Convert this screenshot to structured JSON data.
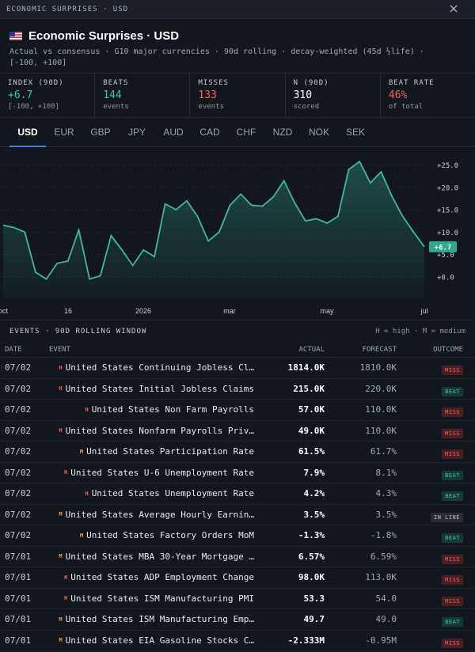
{
  "window": {
    "title": "ECONOMIC SURPRISES · USD"
  },
  "header": {
    "title": "Economic Surprises · USD",
    "subtitle": "Actual vs consensus · G10 major currencies · 90d rolling · decay-weighted (45d ½life) · [-100, +100]"
  },
  "stats": [
    {
      "label": "INDEX (90D)",
      "value": "+6.7",
      "sub": "[-100, +100]",
      "tone": "green"
    },
    {
      "label": "BEATS",
      "value": "144",
      "sub": "events",
      "tone": "green"
    },
    {
      "label": "MISSES",
      "value": "133",
      "sub": "events",
      "tone": "red"
    },
    {
      "label": "N (90D)",
      "value": "310",
      "sub": "scored",
      "tone": "white"
    },
    {
      "label": "BEAT RATE",
      "value": "46%",
      "sub": "of total",
      "tone": "red"
    }
  ],
  "tabs": [
    "USD",
    "EUR",
    "GBP",
    "JPY",
    "AUD",
    "CAD",
    "CHF",
    "NZD",
    "NOK",
    "SEK"
  ],
  "active_tab": "USD",
  "chart_data": {
    "type": "area",
    "y_ticks": [
      "+25.0",
      "+20.0",
      "+15.0",
      "+10.0",
      "+5.0",
      "+0.0"
    ],
    "ylim": [
      -5,
      29
    ],
    "x_labels": [
      "oct",
      "16",
      "2026",
      "mar",
      "may",
      "jul"
    ],
    "current_value_label": "+6.7",
    "series_color": "#3fb8a0",
    "values": [
      11.5,
      11.0,
      10.0,
      1.0,
      -0.5,
      3.0,
      3.5,
      10.5,
      -0.5,
      0.2,
      9.2,
      6.0,
      2.5,
      6.0,
      4.5,
      16.3,
      15.0,
      17.0,
      13.5,
      8.0,
      10.0,
      16.0,
      18.5,
      16.0,
      15.8,
      17.8,
      21.5,
      16.5,
      12.5,
      13.0,
      12.0,
      13.5,
      24.0,
      25.8,
      21.0,
      23.5,
      18.0,
      13.5,
      10.0,
      6.7
    ]
  },
  "events": {
    "title": "EVENTS · 90D ROLLING WINDOW",
    "legend": "H = high · M = medium",
    "columns": {
      "date": "DATE",
      "event": "EVENT",
      "actual": "ACTUAL",
      "forecast": "FORECAST",
      "outcome": "OUTCOME"
    },
    "rows": [
      {
        "date": "07/02",
        "imp": "H",
        "event": "United States Continuing Jobless Cl…",
        "actual": "1814.0K",
        "forecast": "1810.0K",
        "outcome": "MISS"
      },
      {
        "date": "07/02",
        "imp": "H",
        "event": "United States Initial Jobless Claims",
        "actual": "215.0K",
        "forecast": "220.0K",
        "outcome": "BEAT"
      },
      {
        "date": "07/02",
        "imp": "H",
        "event": "United States Non Farm Payrolls",
        "actual": "57.0K",
        "forecast": "110.0K",
        "outcome": "MISS"
      },
      {
        "date": "07/02",
        "imp": "H",
        "event": "United States Nonfarm Payrolls Priv…",
        "actual": "49.0K",
        "forecast": "110.0K",
        "outcome": "MISS"
      },
      {
        "date": "07/02",
        "imp": "M",
        "event": "United States Participation Rate",
        "actual": "61.5%",
        "forecast": "61.7%",
        "outcome": "MISS"
      },
      {
        "date": "07/02",
        "imp": "H",
        "event": "United States U-6 Unemployment Rate",
        "actual": "7.9%",
        "forecast": "8.1%",
        "outcome": "BEAT"
      },
      {
        "date": "07/02",
        "imp": "H",
        "event": "United States Unemployment Rate",
        "actual": "4.2%",
        "forecast": "4.3%",
        "outcome": "BEAT"
      },
      {
        "date": "07/02",
        "imp": "M",
        "event": "United States Average Hourly Earnin…",
        "actual": "3.5%",
        "forecast": "3.5%",
        "outcome": "IN LINE"
      },
      {
        "date": "07/02",
        "imp": "M",
        "event": "United States Factory Orders MoM",
        "actual": "-1.3%",
        "forecast": "-1.8%",
        "outcome": "BEAT"
      },
      {
        "date": "07/01",
        "imp": "M",
        "event": "United States MBA 30-Year Mortgage …",
        "actual": "6.57%",
        "forecast": "6.59%",
        "outcome": "MISS"
      },
      {
        "date": "07/01",
        "imp": "H",
        "event": "United States ADP Employment Change",
        "actual": "98.0K",
        "forecast": "113.0K",
        "outcome": "MISS"
      },
      {
        "date": "07/01",
        "imp": "H",
        "event": "United States ISM Manufacturing PMI",
        "actual": "53.3",
        "forecast": "54.0",
        "outcome": "MISS"
      },
      {
        "date": "07/01",
        "imp": "M",
        "event": "United States ISM Manufacturing Emp…",
        "actual": "49.7",
        "forecast": "49.0",
        "outcome": "BEAT"
      },
      {
        "date": "07/01",
        "imp": "M",
        "event": "United States EIA Gasoline Stocks C…",
        "actual": "-2.333M",
        "forecast": "-0.95M",
        "outcome": "MISS"
      }
    ]
  }
}
